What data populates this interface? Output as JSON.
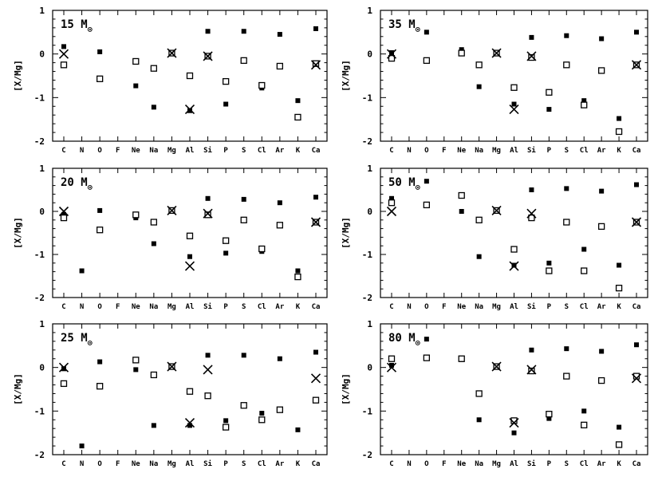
{
  "chart_data": [
    {
      "type": "scatter",
      "title": "15",
      "title_unit": "M",
      "title_sub": "⊙",
      "ylabel": "[X/Mg]",
      "ylim": [
        -2,
        1
      ],
      "yticks": [
        1,
        0,
        -1,
        -2
      ],
      "categories": [
        "C",
        "N",
        "O",
        "F",
        "Ne",
        "Na",
        "Mg",
        "Al",
        "Si",
        "P",
        "S",
        "Cl",
        "Ar",
        "K",
        "Ca"
      ],
      "series": [
        {
          "marker": "filled-square",
          "values": [
            0.17,
            null,
            0.05,
            null,
            -0.73,
            -1.22,
            0.02,
            -1.3,
            0.52,
            -1.15,
            0.52,
            -0.78,
            0.45,
            -1.07,
            0.58
          ]
        },
        {
          "marker": "open-square",
          "values": [
            -0.25,
            null,
            -0.57,
            null,
            -0.17,
            -0.33,
            0.02,
            -0.5,
            -0.05,
            -0.63,
            -0.15,
            -0.72,
            -0.28,
            -1.45,
            -0.22
          ]
        },
        {
          "marker": "cross",
          "values": [
            0.0,
            null,
            null,
            null,
            null,
            null,
            0.02,
            -1.27,
            -0.05,
            null,
            null,
            null,
            null,
            null,
            -0.25
          ]
        }
      ]
    },
    {
      "type": "scatter",
      "title": "35",
      "title_unit": "M",
      "title_sub": "⊙",
      "ylabel": "[X/Mg]",
      "ylim": [
        -2,
        1
      ],
      "yticks": [
        1,
        0,
        -1,
        -2
      ],
      "categories": [
        "C",
        "N",
        "O",
        "F",
        "Ne",
        "Na",
        "Mg",
        "Al",
        "Si",
        "P",
        "S",
        "Cl",
        "Ar",
        "K",
        "Ca"
      ],
      "series": [
        {
          "marker": "filled-square",
          "values": [
            0.03,
            null,
            0.5,
            null,
            0.1,
            -0.75,
            0.02,
            -1.15,
            0.38,
            -1.27,
            0.42,
            -1.07,
            0.35,
            -1.48,
            0.5
          ]
        },
        {
          "marker": "open-square",
          "values": [
            -0.1,
            null,
            -0.15,
            null,
            0.02,
            -0.25,
            0.02,
            -0.77,
            -0.08,
            -0.88,
            -0.25,
            -1.17,
            -0.38,
            -1.78,
            -0.25
          ]
        },
        {
          "marker": "cross",
          "values": [
            0.0,
            null,
            null,
            null,
            null,
            null,
            0.02,
            -1.27,
            -0.05,
            null,
            null,
            null,
            null,
            null,
            -0.25
          ]
        }
      ]
    },
    {
      "type": "scatter",
      "title": "20",
      "title_unit": "M",
      "title_sub": "⊙",
      "ylabel": "[X/Mg]",
      "ylim": [
        -2,
        1
      ],
      "yticks": [
        1,
        0,
        -1,
        -2
      ],
      "categories": [
        "C",
        "N",
        "O",
        "F",
        "Ne",
        "Na",
        "Mg",
        "Al",
        "Si",
        "P",
        "S",
        "Cl",
        "Ar",
        "K",
        "Ca"
      ],
      "series": [
        {
          "marker": "filled-square",
          "values": [
            -0.07,
            -1.38,
            0.02,
            null,
            -0.15,
            -0.75,
            0.02,
            -1.05,
            0.3,
            -0.97,
            0.28,
            -0.93,
            0.2,
            -1.38,
            0.33
          ]
        },
        {
          "marker": "open-square",
          "values": [
            -0.15,
            null,
            -0.43,
            null,
            -0.08,
            -0.25,
            0.02,
            -0.57,
            -0.08,
            -0.68,
            -0.2,
            -0.87,
            -0.32,
            -1.52,
            -0.25
          ]
        },
        {
          "marker": "cross",
          "values": [
            0.0,
            null,
            null,
            null,
            null,
            null,
            0.02,
            -1.27,
            -0.05,
            null,
            null,
            null,
            null,
            null,
            -0.25
          ]
        }
      ]
    },
    {
      "type": "scatter",
      "title": "50",
      "title_unit": "M",
      "title_sub": "⊙",
      "ylabel": "[X/Mg]",
      "ylim": [
        -2,
        1
      ],
      "yticks": [
        1,
        0,
        -1,
        -2
      ],
      "categories": [
        "C",
        "N",
        "O",
        "F",
        "Ne",
        "Na",
        "Mg",
        "Al",
        "Si",
        "P",
        "S",
        "Cl",
        "Ar",
        "K",
        "Ca"
      ],
      "series": [
        {
          "marker": "filled-square",
          "values": [
            0.3,
            null,
            0.7,
            null,
            0.0,
            -1.05,
            0.02,
            -1.25,
            0.5,
            -1.2,
            0.53,
            -0.88,
            0.47,
            -1.25,
            0.62
          ]
        },
        {
          "marker": "open-square",
          "values": [
            0.2,
            null,
            0.15,
            null,
            0.37,
            -0.2,
            0.02,
            -0.88,
            -0.15,
            -1.38,
            -0.25,
            -1.38,
            -0.35,
            -1.78,
            -0.25
          ]
        },
        {
          "marker": "cross",
          "values": [
            0.0,
            null,
            null,
            null,
            null,
            null,
            0.02,
            -1.27,
            -0.05,
            null,
            null,
            null,
            null,
            null,
            -0.25
          ]
        }
      ]
    },
    {
      "type": "scatter",
      "title": "25",
      "title_unit": "M",
      "title_sub": "⊙",
      "ylabel": "[X/Mg]",
      "ylim": [
        -2,
        1
      ],
      "yticks": [
        1,
        0,
        -1,
        -2
      ],
      "categories": [
        "C",
        "N",
        "O",
        "F",
        "Ne",
        "Na",
        "Mg",
        "Al",
        "Si",
        "P",
        "S",
        "Cl",
        "Ar",
        "K",
        "Ca"
      ],
      "series": [
        {
          "marker": "filled-square",
          "values": [
            -0.03,
            -1.8,
            0.13,
            null,
            -0.05,
            -1.33,
            0.02,
            -1.33,
            0.28,
            -1.22,
            0.28,
            -1.05,
            0.2,
            -1.43,
            0.35
          ]
        },
        {
          "marker": "open-square",
          "values": [
            -0.37,
            null,
            -0.43,
            null,
            0.17,
            -0.17,
            0.02,
            -0.55,
            -0.65,
            -1.37,
            -0.87,
            -1.2,
            -0.97,
            null,
            -0.75
          ]
        },
        {
          "marker": "cross",
          "values": [
            0.0,
            null,
            null,
            null,
            null,
            null,
            0.02,
            -1.27,
            -0.05,
            null,
            null,
            null,
            null,
            null,
            -0.25
          ]
        }
      ]
    },
    {
      "type": "scatter",
      "title": "80",
      "title_unit": "M",
      "title_sub": "⊙",
      "ylabel": "[X/Mg]",
      "ylim": [
        -2,
        1
      ],
      "yticks": [
        1,
        0,
        -1,
        -2
      ],
      "categories": [
        "C",
        "N",
        "O",
        "F",
        "Ne",
        "Na",
        "Mg",
        "Al",
        "Si",
        "P",
        "S",
        "Cl",
        "Ar",
        "K",
        "Ca"
      ],
      "series": [
        {
          "marker": "filled-square",
          "values": [
            0.05,
            null,
            0.65,
            null,
            0.18,
            -1.2,
            0.02,
            -1.5,
            0.4,
            -1.17,
            0.43,
            -1.0,
            0.37,
            -1.37,
            0.52
          ]
        },
        {
          "marker": "open-square",
          "values": [
            0.2,
            null,
            0.22,
            null,
            0.2,
            -0.6,
            0.02,
            -1.22,
            -0.08,
            -1.07,
            -0.2,
            -1.32,
            -0.3,
            -1.77,
            -0.2
          ]
        },
        {
          "marker": "cross",
          "values": [
            0.0,
            null,
            null,
            null,
            null,
            null,
            0.02,
            -1.27,
            -0.05,
            null,
            null,
            null,
            null,
            null,
            -0.25
          ]
        }
      ]
    }
  ]
}
